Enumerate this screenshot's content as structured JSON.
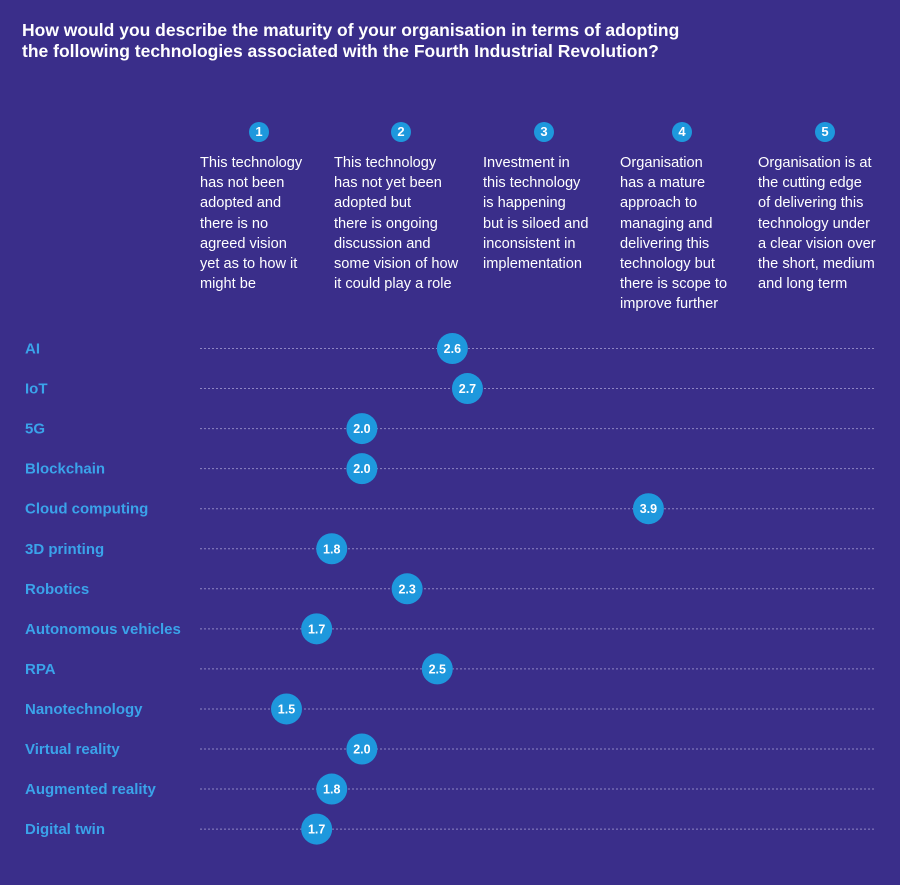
{
  "title_lines": [
    "How would you describe the maturity of your organisation in terms of adopting",
    "the following technologies associated with the Fourth Industrial Revolution?"
  ],
  "scale": [
    {
      "num": "1",
      "lines": [
        "This technology",
        "has not been",
        "adopted and",
        "there is no",
        "agreed vision",
        "yet as to how it",
        "might be"
      ]
    },
    {
      "num": "2",
      "lines": [
        "This technology",
        "has not yet been",
        "adopted but",
        "there is ongoing",
        "discussion and",
        "some vision of how",
        "it could play a role"
      ]
    },
    {
      "num": "3",
      "lines": [
        "Investment in",
        "this technology",
        "is happening",
        "but is siloed and",
        "inconsistent in",
        "implementation"
      ]
    },
    {
      "num": "4",
      "lines": [
        "Organisation",
        "has a mature",
        "approach to",
        "managing and",
        "delivering this",
        "technology but",
        "there is scope to",
        "improve further"
      ]
    },
    {
      "num": "5",
      "lines": [
        "Organisation is at",
        "the cutting edge",
        "of delivering this",
        "technology under",
        "a clear vision over",
        "the short, medium",
        "and long term"
      ]
    }
  ],
  "colors": {
    "background": "#3a2e8a",
    "bubble": "#1e98dd",
    "label": "#3aa3ea",
    "dotted_line": "#8f86c4"
  },
  "chart_data": {
    "type": "scatter",
    "xlim": [
      1,
      5
    ],
    "categories": [
      "AI",
      "IoT",
      "5G",
      "Blockchain",
      "Cloud computing",
      "3D printing",
      "Robotics",
      "Autonomous vehicles",
      "RPA",
      "Nanotechnology",
      "Virtual reality",
      "Augmented reality",
      "Digital twin"
    ],
    "values": [
      2.6,
      2.7,
      2.0,
      2.0,
      3.9,
      1.8,
      2.3,
      1.7,
      2.5,
      1.5,
      2.0,
      1.8,
      1.7
    ],
    "value_labels": [
      "2.6",
      "2.7",
      "2.0",
      "2.0",
      "3.9",
      "1.8",
      "2.3",
      "1.7",
      "2.5",
      "1.5",
      "2.0",
      "1.8",
      "1.7"
    ]
  }
}
